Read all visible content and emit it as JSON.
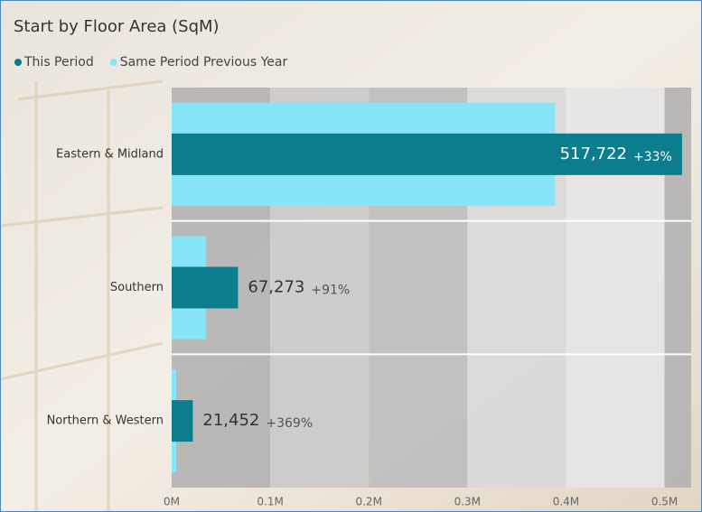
{
  "chart_data": {
    "type": "bar",
    "orientation": "horizontal",
    "title": "Start by Floor Area (SqM)",
    "categories": [
      "Eastern & Midland",
      "Southern",
      "Northern & Western"
    ],
    "series": [
      {
        "name": "This Period",
        "color": "#0b7d8c",
        "values": [
          517722,
          67273,
          21452
        ],
        "value_labels": [
          "517,722",
          "67,273",
          "21,452"
        ],
        "change_labels": [
          "+33%",
          "+91%",
          "+369%"
        ]
      },
      {
        "name": "Same Period Previous Year",
        "color": "#86e6f8",
        "values": [
          389000,
          35000,
          4600
        ]
      }
    ],
    "xlim": [
      0,
      527000
    ],
    "xticks": [
      {
        "value": 0,
        "label": "0M"
      },
      {
        "value": 100000,
        "label": "0.1M"
      },
      {
        "value": 200000,
        "label": "0.2M"
      },
      {
        "value": 300000,
        "label": "0.3M"
      },
      {
        "value": 400000,
        "label": "0.4M"
      },
      {
        "value": 500000,
        "label": "0.5M"
      }
    ],
    "legend": "top-left"
  }
}
